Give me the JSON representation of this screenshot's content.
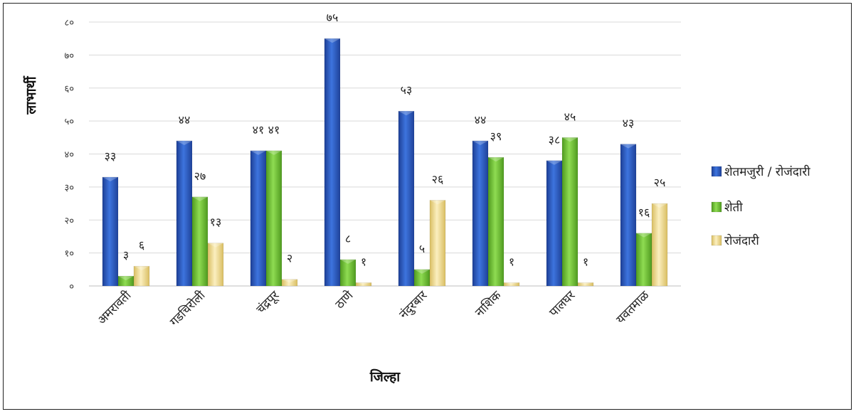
{
  "chart_data": {
    "type": "bar",
    "title": "",
    "xlabel": "जिल्हा",
    "ylabel": "लाभार्थी",
    "ylim": [
      0,
      80
    ],
    "yticks": [
      "०",
      "१०",
      "२०",
      "३०",
      "४०",
      "५०",
      "६०",
      "७०",
      "८०"
    ],
    "categories": [
      "अमरावती",
      "गडचिरोली",
      "चंद्रपूर",
      "ठाणे",
      "नंदुरबार",
      "नाशिक",
      "पालघर",
      "यवतमाळ"
    ],
    "series": [
      {
        "name": "शेतमजुरी / रोजंदारी",
        "color": "#2e5cc8",
        "values": [
          33,
          44,
          41,
          75,
          53,
          44,
          38,
          43
        ],
        "labels": [
          "३३",
          "४४",
          "४१",
          "७५",
          "५३",
          "४४",
          "३८",
          "४३"
        ]
      },
      {
        "name": "शेती",
        "color": "#76c73a",
        "values": [
          3,
          27,
          41,
          8,
          5,
          39,
          45,
          16
        ],
        "labels": [
          "३",
          "२७",
          "४१",
          "८",
          "५",
          "३९",
          "४५",
          "१६"
        ]
      },
      {
        "name": "रोजंदारी",
        "color": "#f3de93",
        "values": [
          6,
          13,
          2,
          1,
          26,
          1,
          1,
          25
        ],
        "labels": [
          "६",
          "१३",
          "२",
          "१",
          "२६",
          "१",
          "१",
          "२५"
        ]
      }
    ],
    "grid": true,
    "legend_position": "right"
  }
}
